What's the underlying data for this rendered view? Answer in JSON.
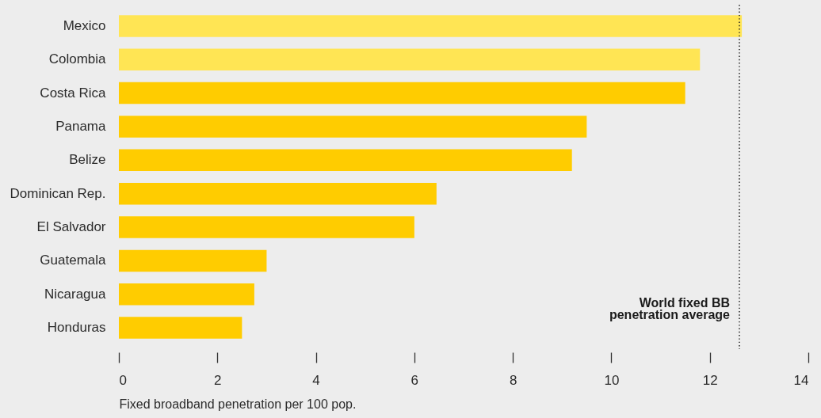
{
  "chart_data": {
    "type": "bar",
    "orientation": "horizontal",
    "categories": [
      "Mexico",
      "Colombia",
      "Costa Rica",
      "Panama",
      "Belize",
      "Dominican Rep.",
      "El Salvador",
      "Guatemala",
      "Nicaragua",
      "Honduras"
    ],
    "values": [
      12.65,
      11.8,
      11.5,
      9.5,
      9.2,
      6.45,
      6.0,
      3.0,
      2.75,
      2.5
    ],
    "colors": [
      "#ffe554",
      "#ffe554",
      "#ffcc00",
      "#ffcc00",
      "#ffcc00",
      "#ffcc00",
      "#ffcc00",
      "#ffcc00",
      "#ffcc00",
      "#ffcc00"
    ],
    "xlabel": "Fixed broadband penetration per 100 pop.",
    "xlim": [
      0,
      14
    ],
    "xticks": [
      0,
      2,
      4,
      6,
      8,
      10,
      12,
      14
    ],
    "ref_lines": [
      {
        "axis": "x",
        "value": 12.6,
        "label": "World fixed BB\npenetration average",
        "color": "#222222",
        "line_style": "dotted"
      }
    ]
  }
}
